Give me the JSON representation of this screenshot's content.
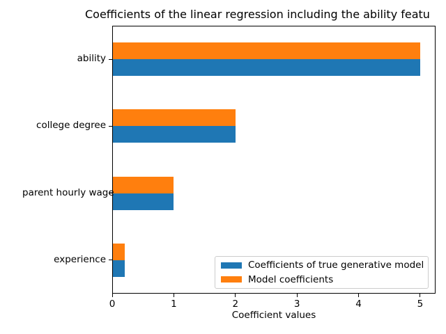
{
  "chart_data": {
    "type": "bar",
    "orientation": "horizontal",
    "title": "Coefficients of the linear regression including the ability featu",
    "xlabel": "Coefficient values",
    "ylabel": "",
    "categories": [
      "ability",
      "college degree",
      "parent hourly wage",
      "experience"
    ],
    "series": [
      {
        "name": "Coefficients of true generative model",
        "color": "#1f77b4",
        "values": [
          5.0,
          2.0,
          1.0,
          0.2
        ]
      },
      {
        "name": "Model coefficients",
        "color": "#ff7f0e",
        "values": [
          5.0,
          2.0,
          1.0,
          0.2
        ]
      }
    ],
    "xticks": [
      "0",
      "1",
      "2",
      "3",
      "4",
      "5"
    ],
    "xlim": [
      0,
      5.25
    ],
    "grid": false,
    "legend_position": "lower right",
    "colors": {
      "background": "#ffffff",
      "spine": "#000000",
      "text": "#000000",
      "legend_border": "#cccccc"
    }
  }
}
